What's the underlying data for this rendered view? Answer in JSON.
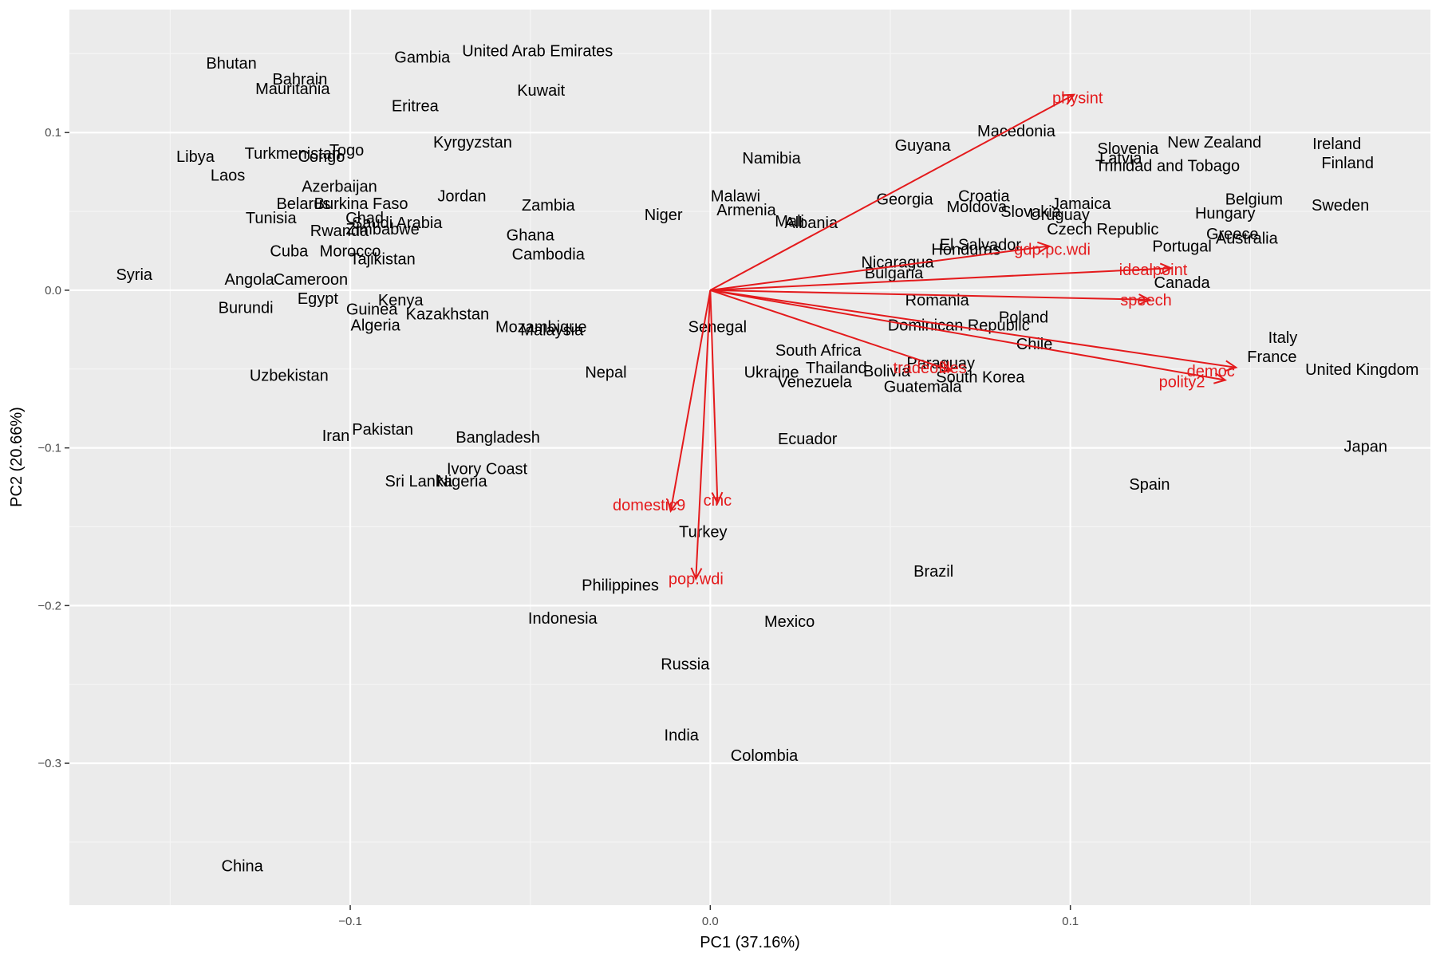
{
  "chart_data": {
    "type": "scatter",
    "xlabel": "PC1 (37.16%)",
    "ylabel": "PC2 (20.66%)",
    "xlim": [
      -0.178,
      0.2
    ],
    "ylim": [
      -0.39,
      0.178
    ],
    "xticks": [
      -0.1,
      0.0,
      0.1
    ],
    "xtick_labels": [
      "−0.1",
      "0.0",
      "0.1"
    ],
    "yticks": [
      -0.3,
      -0.2,
      -0.1,
      0.0,
      0.1
    ],
    "ytick_labels": [
      "−0.3",
      "−0.2",
      "−0.1",
      "0.0",
      "0.1"
    ],
    "grid": true,
    "vector_color": "#e41a1c",
    "points": [
      {
        "label": "Bhutan",
        "x": -0.133,
        "y": 0.144
      },
      {
        "label": "Bahrain",
        "x": -0.114,
        "y": 0.134
      },
      {
        "label": "Mauritania",
        "x": -0.116,
        "y": 0.128
      },
      {
        "label": "Gambia",
        "x": -0.08,
        "y": 0.148
      },
      {
        "label": "United Arab Emirates",
        "x": -0.048,
        "y": 0.152
      },
      {
        "label": "Kuwait",
        "x": -0.047,
        "y": 0.127
      },
      {
        "label": "Eritrea",
        "x": -0.082,
        "y": 0.117
      },
      {
        "label": "Kyrgyzstan",
        "x": -0.066,
        "y": 0.094
      },
      {
        "label": "Libya",
        "x": -0.143,
        "y": 0.085
      },
      {
        "label": "Turkmenistan",
        "x": -0.116,
        "y": 0.087
      },
      {
        "label": "Togo",
        "x": -0.101,
        "y": 0.089
      },
      {
        "label": "Congo",
        "x": -0.108,
        "y": 0.085
      },
      {
        "label": "Laos",
        "x": -0.134,
        "y": 0.073
      },
      {
        "label": "Azerbaijan",
        "x": -0.103,
        "y": 0.066
      },
      {
        "label": "Belarus",
        "x": -0.113,
        "y": 0.055
      },
      {
        "label": "Burkina Faso",
        "x": -0.097,
        "y": 0.055
      },
      {
        "label": "Jordan",
        "x": -0.069,
        "y": 0.06
      },
      {
        "label": "Zambia",
        "x": -0.045,
        "y": 0.054
      },
      {
        "label": "Tunisia",
        "x": -0.122,
        "y": 0.046
      },
      {
        "label": "Chad",
        "x": -0.096,
        "y": 0.046
      },
      {
        "label": "Saudi Arabia",
        "x": -0.087,
        "y": 0.043
      },
      {
        "label": "Rwanda",
        "x": -0.103,
        "y": 0.038
      },
      {
        "label": "Zimbabwe",
        "x": -0.091,
        "y": 0.039
      },
      {
        "label": "Ghana",
        "x": -0.05,
        "y": 0.035
      },
      {
        "label": "Cambodia",
        "x": -0.045,
        "y": 0.023
      },
      {
        "label": "Cuba",
        "x": -0.117,
        "y": 0.025
      },
      {
        "label": "Morocco",
        "x": -0.1,
        "y": 0.025
      },
      {
        "label": "Tajikistan",
        "x": -0.091,
        "y": 0.02
      },
      {
        "label": "Syria",
        "x": -0.16,
        "y": 0.01
      },
      {
        "label": "Angola",
        "x": -0.128,
        "y": 0.007
      },
      {
        "label": "Cameroon",
        "x": -0.111,
        "y": 0.007
      },
      {
        "label": "Egypt",
        "x": -0.109,
        "y": -0.005
      },
      {
        "label": "Kenya",
        "x": -0.086,
        "y": -0.006
      },
      {
        "label": "Burundi",
        "x": -0.129,
        "y": -0.011
      },
      {
        "label": "Guinea",
        "x": -0.094,
        "y": -0.012
      },
      {
        "label": "Kazakhstan",
        "x": -0.073,
        "y": -0.015
      },
      {
        "label": "Algeria",
        "x": -0.093,
        "y": -0.022
      },
      {
        "label": "Mozambique",
        "x": -0.047,
        "y": -0.023
      },
      {
        "label": "Malaysia",
        "x": -0.044,
        "y": -0.025
      },
      {
        "label": "Senegal",
        "x": 0.002,
        "y": -0.023
      },
      {
        "label": "Nepal",
        "x": -0.029,
        "y": -0.052
      },
      {
        "label": "Uzbekistan",
        "x": -0.117,
        "y": -0.054
      },
      {
        "label": "Iran",
        "x": -0.104,
        "y": -0.092
      },
      {
        "label": "Pakistan",
        "x": -0.091,
        "y": -0.088
      },
      {
        "label": "Bangladesh",
        "x": -0.059,
        "y": -0.093
      },
      {
        "label": "Ivory Coast",
        "x": -0.062,
        "y": -0.113
      },
      {
        "label": "Sri Lanka",
        "x": -0.081,
        "y": -0.121
      },
      {
        "label": "Nigeria",
        "x": -0.069,
        "y": -0.121
      },
      {
        "label": "Namibia",
        "x": 0.017,
        "y": 0.084
      },
      {
        "label": "Malawi",
        "x": 0.007,
        "y": 0.06
      },
      {
        "label": "Armenia",
        "x": 0.01,
        "y": 0.051
      },
      {
        "label": "Niger",
        "x": -0.013,
        "y": 0.048
      },
      {
        "label": "Mali",
        "x": 0.022,
        "y": 0.044
      },
      {
        "label": "Albania",
        "x": 0.028,
        "y": 0.043
      },
      {
        "label": "Guyana",
        "x": 0.059,
        "y": 0.092
      },
      {
        "label": "Macedonia",
        "x": 0.085,
        "y": 0.101
      },
      {
        "label": "Georgia",
        "x": 0.054,
        "y": 0.058
      },
      {
        "label": "Croatia",
        "x": 0.076,
        "y": 0.06
      },
      {
        "label": "Moldova",
        "x": 0.074,
        "y": 0.053
      },
      {
        "label": "Slovakia",
        "x": 0.089,
        "y": 0.05
      },
      {
        "label": "Jamaica",
        "x": 0.103,
        "y": 0.055
      },
      {
        "label": "Uruguay",
        "x": 0.097,
        "y": 0.048
      },
      {
        "label": "Slovenia",
        "x": 0.116,
        "y": 0.09
      },
      {
        "label": "Latvia",
        "x": 0.114,
        "y": 0.084
      },
      {
        "label": "New Zealand",
        "x": 0.14,
        "y": 0.094
      },
      {
        "label": "Trinidad and Tobago",
        "x": 0.127,
        "y": 0.079
      },
      {
        "label": "Ireland",
        "x": 0.174,
        "y": 0.093
      },
      {
        "label": "Finland",
        "x": 0.177,
        "y": 0.081
      },
      {
        "label": "Belgium",
        "x": 0.151,
        "y": 0.058
      },
      {
        "label": "Sweden",
        "x": 0.175,
        "y": 0.054
      },
      {
        "label": "Hungary",
        "x": 0.143,
        "y": 0.049
      },
      {
        "label": "Greece",
        "x": 0.145,
        "y": 0.036
      },
      {
        "label": "Australia",
        "x": 0.149,
        "y": 0.033
      },
      {
        "label": "Czech Republic",
        "x": 0.109,
        "y": 0.039
      },
      {
        "label": "Portugal",
        "x": 0.131,
        "y": 0.028
      },
      {
        "label": "Canada",
        "x": 0.131,
        "y": 0.005
      },
      {
        "label": "Nicaragua",
        "x": 0.052,
        "y": 0.018
      },
      {
        "label": "Bulgaria",
        "x": 0.051,
        "y": 0.011
      },
      {
        "label": "El Salvador",
        "x": 0.075,
        "y": 0.029
      },
      {
        "label": "Honduras",
        "x": 0.071,
        "y": 0.026
      },
      {
        "label": "Romania",
        "x": 0.063,
        "y": -0.006
      },
      {
        "label": "Dominican Republic",
        "x": 0.069,
        "y": -0.022
      },
      {
        "label": "Poland",
        "x": 0.087,
        "y": -0.017
      },
      {
        "label": "Chile",
        "x": 0.09,
        "y": -0.034
      },
      {
        "label": "South Africa",
        "x": 0.03,
        "y": -0.038
      },
      {
        "label": "Thailand",
        "x": 0.035,
        "y": -0.049
      },
      {
        "label": "Bolivia",
        "x": 0.049,
        "y": -0.051
      },
      {
        "label": "Paraguay",
        "x": 0.064,
        "y": -0.046
      },
      {
        "label": "South Korea",
        "x": 0.075,
        "y": -0.055
      },
      {
        "label": "Ukraine",
        "x": 0.017,
        "y": -0.052
      },
      {
        "label": "Venezuela",
        "x": 0.029,
        "y": -0.058
      },
      {
        "label": "Guatemala",
        "x": 0.059,
        "y": -0.061
      },
      {
        "label": "Ecuador",
        "x": 0.027,
        "y": -0.094
      },
      {
        "label": "Italy",
        "x": 0.159,
        "y": -0.03
      },
      {
        "label": "France",
        "x": 0.156,
        "y": -0.042
      },
      {
        "label": "United Kingdom",
        "x": 0.181,
        "y": -0.05
      },
      {
        "label": "Japan",
        "x": 0.182,
        "y": -0.099
      },
      {
        "label": "Spain",
        "x": 0.122,
        "y": -0.123
      },
      {
        "label": "Turkey",
        "x": -0.002,
        "y": -0.153
      },
      {
        "label": "Philippines",
        "x": -0.025,
        "y": -0.187
      },
      {
        "label": "Brazil",
        "x": 0.062,
        "y": -0.178
      },
      {
        "label": "Indonesia",
        "x": -0.041,
        "y": -0.208
      },
      {
        "label": "Mexico",
        "x": 0.022,
        "y": -0.21
      },
      {
        "label": "Russia",
        "x": -0.007,
        "y": -0.237
      },
      {
        "label": "India",
        "x": -0.008,
        "y": -0.282
      },
      {
        "label": "Colombia",
        "x": 0.015,
        "y": -0.295
      },
      {
        "label": "China",
        "x": -0.13,
        "y": -0.365
      }
    ],
    "vectors": [
      {
        "label": "physint",
        "x": 0.101,
        "y": 0.124,
        "lx": 0.102,
        "ly": 0.122
      },
      {
        "label": "gdp.pc.wdi",
        "x": 0.094,
        "y": 0.028,
        "lx": 0.095,
        "ly": 0.026
      },
      {
        "label": "idealpoint",
        "x": 0.128,
        "y": 0.014,
        "lx": 0.123,
        "ly": 0.013
      },
      {
        "label": "speech",
        "x": 0.122,
        "y": -0.006,
        "lx": 0.121,
        "ly": -0.006
      },
      {
        "label": "democ",
        "x": 0.146,
        "y": -0.049,
        "lx": 0.139,
        "ly": -0.051
      },
      {
        "label": "polity2",
        "x": 0.143,
        "y": -0.057,
        "lx": 0.131,
        "ly": -0.058
      },
      {
        "label": "tradeofiles",
        "x": 0.067,
        "y": -0.051,
        "lx": 0.061,
        "ly": -0.049
      },
      {
        "label": "domestic9",
        "x": -0.011,
        "y": -0.14,
        "lx": -0.017,
        "ly": -0.136
      },
      {
        "label": "cinc",
        "x": 0.002,
        "y": -0.135,
        "lx": 0.002,
        "ly": -0.133
      },
      {
        "label": "pop.wdi",
        "x": -0.004,
        "y": -0.183,
        "lx": -0.004,
        "ly": -0.183
      }
    ]
  }
}
